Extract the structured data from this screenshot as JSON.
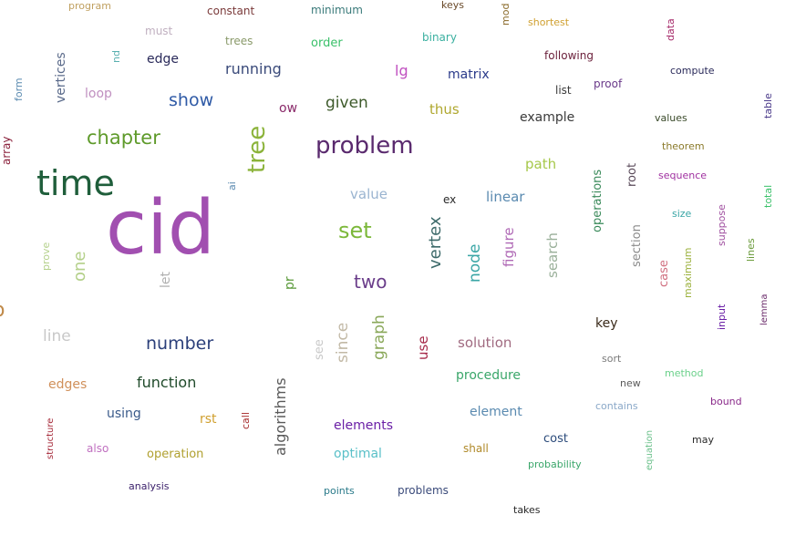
{
  "words": [
    {
      "text": "cid",
      "color": "#a14fb0"
    },
    {
      "text": "time",
      "color": "#1f5e3b"
    },
    {
      "text": "problem",
      "color": "#5a2a6e"
    },
    {
      "text": "tree",
      "color": "#8bb33a"
    },
    {
      "text": "chapter",
      "color": "#5e9a2a"
    },
    {
      "text": "set",
      "color": "#7cb83a"
    },
    {
      "text": "show",
      "color": "#2f5aa6"
    },
    {
      "text": "number",
      "color": "#2b3f7a"
    },
    {
      "text": "two",
      "color": "#6a3d8a"
    },
    {
      "text": "given",
      "color": "#3d5a2a"
    },
    {
      "text": "running",
      "color": "#3a4a7a"
    },
    {
      "text": "function",
      "color": "#1f4a2a"
    },
    {
      "text": "vertex",
      "color": "#3d6a6a"
    },
    {
      "text": "graph",
      "color": "#8aa85a"
    },
    {
      "text": "algorithms",
      "color": "#5a5a5a"
    },
    {
      "text": "since",
      "color": "#c2b9a6"
    },
    {
      "text": "one",
      "color": "#b4d08a"
    },
    {
      "text": "node",
      "color": "#3aa6a6"
    },
    {
      "text": "line",
      "color": "#c8c8c8"
    },
    {
      "text": "figure",
      "color": "#b06ab6"
    },
    {
      "text": "linear",
      "color": "#5a8ab0"
    },
    {
      "text": "solution",
      "color": "#a06a80"
    },
    {
      "text": "value",
      "color": "#9ab4d0"
    },
    {
      "text": "thus",
      "color": "#b0a830"
    },
    {
      "text": "path",
      "color": "#a6c84a"
    },
    {
      "text": "search",
      "color": "#9ab09a"
    },
    {
      "text": "operations",
      "color": "#3a8a5a"
    },
    {
      "text": "example",
      "color": "#3a3a3a"
    },
    {
      "text": "element",
      "color": "#5a8ab0"
    },
    {
      "text": "procedure",
      "color": "#3aa66a"
    },
    {
      "text": "edge",
      "color": "#2a2a5a"
    },
    {
      "text": "matrix",
      "color": "#2a3a8a"
    },
    {
      "text": "vertices",
      "color": "#5a6a8a"
    },
    {
      "text": "optimal",
      "color": "#5ac0c8"
    },
    {
      "text": "elements",
      "color": "#6a1fa6"
    },
    {
      "text": "use",
      "color": "#a62a4a"
    },
    {
      "text": "lg",
      "color": "#c050c0"
    },
    {
      "text": "key",
      "color": "#3a2a1a"
    },
    {
      "text": "using",
      "color": "#3a5a8a"
    },
    {
      "text": "edges",
      "color": "#d0905a"
    },
    {
      "text": "loop",
      "color": "#c090c0"
    },
    {
      "text": "order",
      "color": "#3ac06a"
    },
    {
      "text": "root",
      "color": "#5a4a5a"
    },
    {
      "text": "section",
      "color": "#8a8a8a"
    },
    {
      "text": "case",
      "color": "#d07080"
    },
    {
      "text": "rst",
      "color": "#d0a030"
    },
    {
      "text": "operation",
      "color": "#b0a030"
    },
    {
      "text": "cost",
      "color": "#2a4a7a"
    },
    {
      "text": "let",
      "color": "#b0b0b0"
    },
    {
      "text": "pr",
      "color": "#5a9a3a"
    },
    {
      "text": "see",
      "color": "#c8c8c8"
    },
    {
      "text": "maximum",
      "color": "#9ab03a"
    },
    {
      "text": "binary",
      "color": "#3ab0a0"
    },
    {
      "text": "trees",
      "color": "#8a9a6a"
    },
    {
      "text": "minimum",
      "color": "#3a7a7a"
    },
    {
      "text": "constant",
      "color": "#7a3a3a"
    },
    {
      "text": "program",
      "color": "#c0a060"
    },
    {
      "text": "must",
      "color": "#c0b0c0"
    },
    {
      "text": "nd",
      "color": "#5ab0b0"
    },
    {
      "text": "form",
      "color": "#5a8ab0"
    },
    {
      "text": "array",
      "color": "#8a1f3a"
    },
    {
      "text": "ai",
      "color": "#5a8ab0"
    },
    {
      "text": "ow",
      "color": "#8a2a6a"
    },
    {
      "text": "ex",
      "color": "#2a2a2a"
    },
    {
      "text": "prove",
      "color": "#b4d08a"
    },
    {
      "text": "keys",
      "color": "#6a4a2a"
    },
    {
      "text": "mod",
      "color": "#8a6a2a"
    },
    {
      "text": "shortest",
      "color": "#d0a030"
    },
    {
      "text": "data",
      "color": "#a62a6a"
    },
    {
      "text": "following",
      "color": "#6a1f3a"
    },
    {
      "text": "list",
      "color": "#3a3a3a"
    },
    {
      "text": "proof",
      "color": "#6a3a8a"
    },
    {
      "text": "compute",
      "color": "#2a2a5a"
    },
    {
      "text": "table",
      "color": "#4a3a8a"
    },
    {
      "text": "values",
      "color": "#3a4a2a"
    },
    {
      "text": "theorem",
      "color": "#8a7a2a"
    },
    {
      "text": "sequence",
      "color": "#a030a0"
    },
    {
      "text": "size",
      "color": "#3aa6a6"
    },
    {
      "text": "total",
      "color": "#3ac06a"
    },
    {
      "text": "suppose",
      "color": "#a050a0"
    },
    {
      "text": "lines",
      "color": "#6a9a3a"
    },
    {
      "text": "input",
      "color": "#6a1fa6"
    },
    {
      "text": "lemma",
      "color": "#6a2a6a"
    },
    {
      "text": "sort",
      "color": "#7a7a7a"
    },
    {
      "text": "new",
      "color": "#5a5a5a"
    },
    {
      "text": "method",
      "color": "#6ad08a"
    },
    {
      "text": "contains",
      "color": "#8aa8c8"
    },
    {
      "text": "bound",
      "color": "#8a2a8a"
    },
    {
      "text": "equation",
      "color": "#6ac08a"
    },
    {
      "text": "may",
      "color": "#2a2a2a"
    },
    {
      "text": "shall",
      "color": "#b08a2a"
    },
    {
      "text": "probability",
      "color": "#3aa66a"
    },
    {
      "text": "structure",
      "color": "#a62a3a"
    },
    {
      "text": "also",
      "color": "#c070c0"
    },
    {
      "text": "call",
      "color": "#a62a2a"
    },
    {
      "text": "analysis",
      "color": "#3a1f6a"
    },
    {
      "text": "points",
      "color": "#2a7a8a"
    },
    {
      "text": "problems",
      "color": "#3a4a7a"
    },
    {
      "text": "takes",
      "color": "#2a2a2a"
    },
    {
      "text": "o",
      "color": "#c08a4a"
    }
  ]
}
